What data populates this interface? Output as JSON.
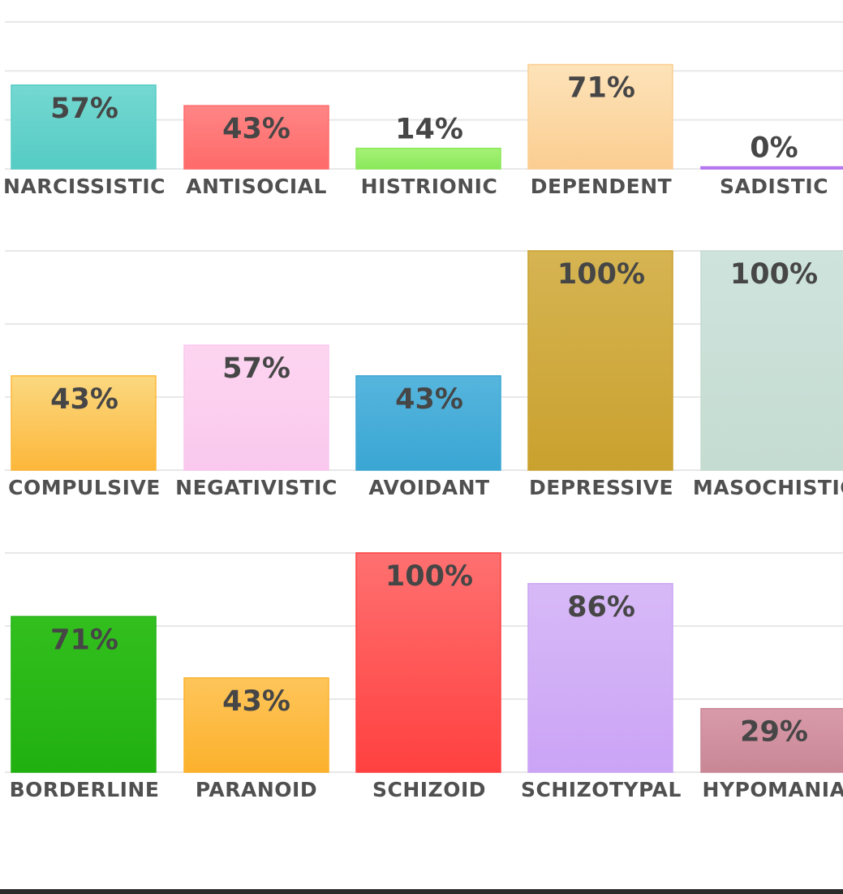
{
  "chart_data": [
    {
      "type": "bar",
      "categories": [
        "NARCISSISTIC",
        "ANTISOCIAL",
        "HISTRIONIC",
        "DEPENDENT",
        "SADISTIC"
      ],
      "values": [
        57,
        43,
        14,
        71,
        0
      ],
      "value_labels": [
        "57%",
        "43%",
        "14%",
        "71%",
        "0%"
      ],
      "colors": [
        [
          "#74d8d1",
          "#55ccc4"
        ],
        [
          "#ff8585",
          "#ff6a6a"
        ],
        [
          "#a6f276",
          "#8ae85a"
        ],
        [
          "#fde3b9",
          "#fbcd91"
        ],
        [
          "#c58cf5",
          "#b06ff0"
        ]
      ],
      "ylim": [
        0,
        100
      ],
      "grid": true
    },
    {
      "type": "bar",
      "categories": [
        "COMPULSIVE",
        "NEGATIVISTIC",
        "AVOIDANT",
        "DEPRESSIVE",
        "MASOCHISTIC"
      ],
      "values": [
        43,
        57,
        43,
        100,
        100
      ],
      "value_labels": [
        "43%",
        "57%",
        "43%",
        "100%",
        "100%"
      ],
      "colors": [
        [
          "#fbd880",
          "#fcb73a"
        ],
        [
          "#fdd5f0",
          "#fac8ee"
        ],
        [
          "#56b5dd",
          "#3aa6d4"
        ],
        [
          "#d6b452",
          "#c9a12e"
        ],
        [
          "#cee3dc",
          "#c5dcd2"
        ]
      ],
      "ylim": [
        0,
        100
      ],
      "grid": true
    },
    {
      "type": "bar",
      "categories": [
        "BORDERLINE",
        "PARANOID",
        "SCHIZOID",
        "SCHIZOTYPAL",
        "HYPOMANIA"
      ],
      "values": [
        71,
        43,
        100,
        86,
        29
      ],
      "value_labels": [
        "71%",
        "43%",
        "100%",
        "86%",
        "29%"
      ],
      "colors": [
        [
          "#33c01e",
          "#20b010"
        ],
        [
          "#fec55a",
          "#fcb12c"
        ],
        [
          "#ff7070",
          "#ff4040"
        ],
        [
          "#d7b9f7",
          "#cba4f6"
        ],
        [
          "#d89aa9",
          "#c98796"
        ]
      ],
      "ylim": [
        0,
        100
      ],
      "grid": true
    }
  ]
}
